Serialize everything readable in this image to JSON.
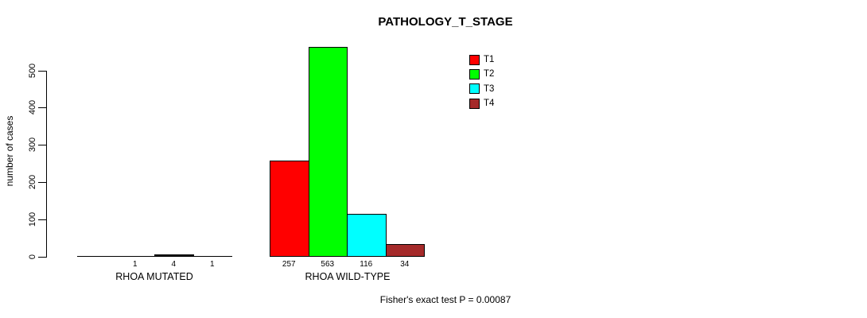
{
  "chart_data": {
    "type": "bar",
    "title": "PATHOLOGY_T_STAGE",
    "ylabel": "number of cases",
    "xlabel": "",
    "categories": [
      "RHOA MUTATED",
      "RHOA WILD-TYPE"
    ],
    "series": [
      {
        "name": "T1",
        "color": "#ff0000",
        "values": [
          0,
          257
        ],
        "labels": [
          "",
          "257"
        ]
      },
      {
        "name": "T2",
        "color": "#00ff00",
        "values": [
          1,
          563
        ],
        "labels": [
          "1",
          "563"
        ]
      },
      {
        "name": "T3",
        "color": "#00ffff",
        "values": [
          4,
          116
        ],
        "labels": [
          "4",
          "116"
        ]
      },
      {
        "name": "T4",
        "color": "#a52a2a",
        "values": [
          1,
          34
        ],
        "labels": [
          "1",
          "34"
        ]
      }
    ],
    "yticks": [
      0,
      100,
      200,
      300,
      400,
      500
    ],
    "ylim": [
      0,
      580
    ],
    "grid": false,
    "legend_position": "top-right",
    "bar_outline_color": "#000000",
    "text_color": "#000000",
    "background_color": "#ffffff",
    "footnote": "Fisher's exact test P = 0.00087"
  }
}
